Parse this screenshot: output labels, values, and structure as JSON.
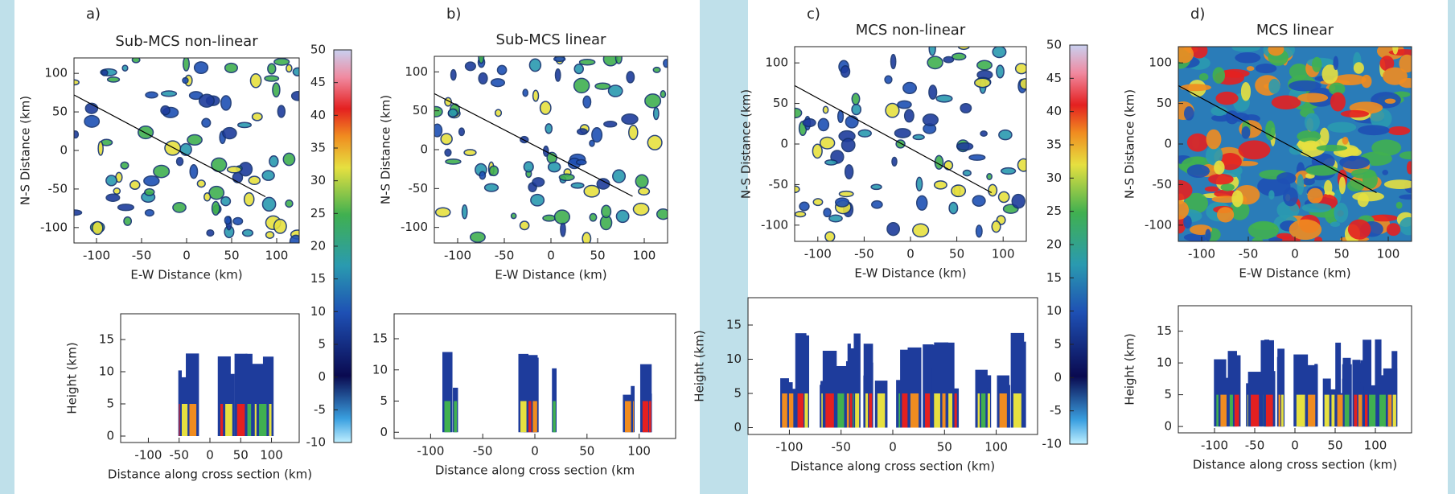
{
  "panels": [
    {
      "label": "a)",
      "title": "Sub-MCS non-linear",
      "plan": {
        "xlabel": "E-W Distance (km)",
        "ylabel": "N-S Distance (km)",
        "xlim": [
          -125,
          125
        ],
        "ylim": [
          -120,
          120
        ],
        "xticks": [
          -100,
          -50,
          0,
          50,
          100
        ],
        "yticks": [
          -100,
          -50,
          0,
          50,
          100
        ]
      },
      "section": {
        "xlabel": "Distance along cross section (km)",
        "ylabel": "Height (km)",
        "xlim": [
          -145,
          145
        ],
        "ylim": [
          -1,
          19
        ],
        "xticks": [
          -100,
          -50,
          0,
          50,
          100
        ],
        "yticks": [
          0,
          5,
          10,
          15
        ]
      }
    },
    {
      "label": "b)",
      "title": "Sub-MCS linear",
      "plan": {
        "xlabel": "E-W Distance (km)",
        "ylabel": "N-S Distance (km)",
        "xlim": [
          -125,
          125
        ],
        "ylim": [
          -120,
          120
        ],
        "xticks": [
          -100,
          -50,
          0,
          50,
          100
        ],
        "yticks": [
          -100,
          -50,
          0,
          50,
          100
        ]
      },
      "section": {
        "xlabel": "Distance along cross section (km",
        "ylabel": "Height (km)",
        "xlim": [
          -135,
          135
        ],
        "ylim": [
          -1,
          19
        ],
        "xticks": [
          -100,
          -50,
          0,
          50,
          100
        ],
        "yticks": [
          0,
          5,
          10,
          15
        ]
      }
    },
    {
      "label": "c)",
      "title": "MCS non-linear",
      "plan": {
        "xlabel": "E-W Distance (km)",
        "ylabel": "N-S Distance (km)",
        "xlim": [
          -125,
          125
        ],
        "ylim": [
          -120,
          120
        ],
        "xticks": [
          -100,
          -50,
          0,
          50,
          100
        ],
        "yticks": [
          -100,
          -50,
          0,
          50,
          100
        ]
      },
      "section": {
        "xlabel": "Distance along cross section (km)",
        "ylabel": "Height (km)",
        "xlim": [
          -140,
          140
        ],
        "ylim": [
          -1,
          19
        ],
        "xticks": [
          -100,
          -50,
          0,
          50,
          100
        ],
        "yticks": [
          0,
          5,
          10,
          15
        ]
      }
    },
    {
      "label": "d)",
      "title": "MCS linear",
      "plan": {
        "xlabel": "E-W Distance (km)",
        "ylabel": "N-S Distance (km)",
        "xlim": [
          -125,
          125
        ],
        "ylim": [
          -120,
          120
        ],
        "xticks": [
          -100,
          -50,
          0,
          50,
          100
        ],
        "yticks": [
          -100,
          -50,
          0,
          50,
          100
        ]
      },
      "section": {
        "xlabel": "Distance along cross section (km)",
        "ylabel": "Height (km)",
        "xlim": [
          -145,
          145
        ],
        "ylim": [
          -1,
          19
        ],
        "xticks": [
          -100,
          -50,
          0,
          50,
          100
        ],
        "yticks": [
          0,
          5,
          10,
          15
        ]
      }
    }
  ],
  "colorbars": [
    {
      "lim": [
        -10,
        50
      ],
      "ticks": [
        -10,
        -5,
        0,
        5,
        10,
        15,
        20,
        25,
        30,
        35,
        40,
        45,
        50
      ]
    },
    {
      "lim": [
        -10,
        50
      ],
      "ticks": [
        -10,
        -5,
        0,
        5,
        10,
        15,
        20,
        25,
        30,
        35,
        40,
        45,
        50
      ]
    }
  ]
}
